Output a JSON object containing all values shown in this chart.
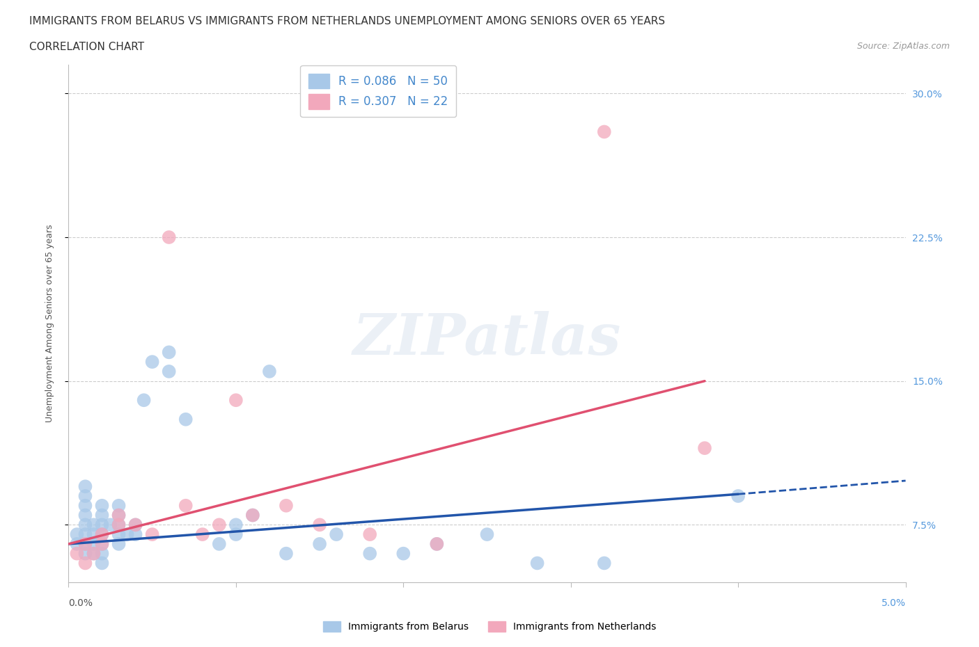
{
  "title_line1": "IMMIGRANTS FROM BELARUS VS IMMIGRANTS FROM NETHERLANDS UNEMPLOYMENT AMONG SENIORS OVER 65 YEARS",
  "title_line2": "CORRELATION CHART",
  "source": "Source: ZipAtlas.com",
  "ylabel": "Unemployment Among Seniors over 65 years",
  "yticks": [
    0.075,
    0.15,
    0.225,
    0.3
  ],
  "ytick_labels": [
    "7.5%",
    "15.0%",
    "22.5%",
    "30.0%"
  ],
  "xlim": [
    0.0,
    0.05
  ],
  "ylim": [
    0.045,
    0.315
  ],
  "color_belarus": "#a8c8e8",
  "color_netherlands": "#f2a8bc",
  "color_line_belarus": "#2255aa",
  "color_line_netherlands": "#e05070",
  "watermark": "ZIPatlas",
  "belarus_x": [
    0.0005,
    0.0005,
    0.001,
    0.001,
    0.001,
    0.001,
    0.001,
    0.001,
    0.001,
    0.001,
    0.0015,
    0.0015,
    0.0015,
    0.0015,
    0.002,
    0.002,
    0.002,
    0.002,
    0.002,
    0.002,
    0.002,
    0.0025,
    0.003,
    0.003,
    0.003,
    0.003,
    0.003,
    0.0035,
    0.004,
    0.004,
    0.0045,
    0.005,
    0.006,
    0.006,
    0.007,
    0.009,
    0.01,
    0.01,
    0.011,
    0.012,
    0.013,
    0.015,
    0.016,
    0.018,
    0.02,
    0.022,
    0.025,
    0.028,
    0.032,
    0.04
  ],
  "belarus_y": [
    0.065,
    0.07,
    0.06,
    0.065,
    0.07,
    0.075,
    0.08,
    0.085,
    0.09,
    0.095,
    0.06,
    0.065,
    0.07,
    0.075,
    0.055,
    0.06,
    0.065,
    0.07,
    0.075,
    0.08,
    0.085,
    0.075,
    0.065,
    0.07,
    0.075,
    0.08,
    0.085,
    0.07,
    0.07,
    0.075,
    0.14,
    0.16,
    0.155,
    0.165,
    0.13,
    0.065,
    0.07,
    0.075,
    0.08,
    0.155,
    0.06,
    0.065,
    0.07,
    0.06,
    0.06,
    0.065,
    0.07,
    0.055,
    0.055,
    0.09
  ],
  "netherlands_x": [
    0.0005,
    0.001,
    0.001,
    0.0015,
    0.002,
    0.002,
    0.003,
    0.003,
    0.004,
    0.005,
    0.006,
    0.007,
    0.008,
    0.009,
    0.01,
    0.011,
    0.013,
    0.015,
    0.018,
    0.022,
    0.032,
    0.038
  ],
  "netherlands_y": [
    0.06,
    0.055,
    0.065,
    0.06,
    0.065,
    0.07,
    0.075,
    0.08,
    0.075,
    0.07,
    0.225,
    0.085,
    0.07,
    0.075,
    0.14,
    0.08,
    0.085,
    0.075,
    0.07,
    0.065,
    0.28,
    0.115
  ],
  "title_fontsize": 11,
  "source_fontsize": 9,
  "axis_label_fontsize": 9,
  "tick_fontsize": 10,
  "legend_fontsize": 12
}
